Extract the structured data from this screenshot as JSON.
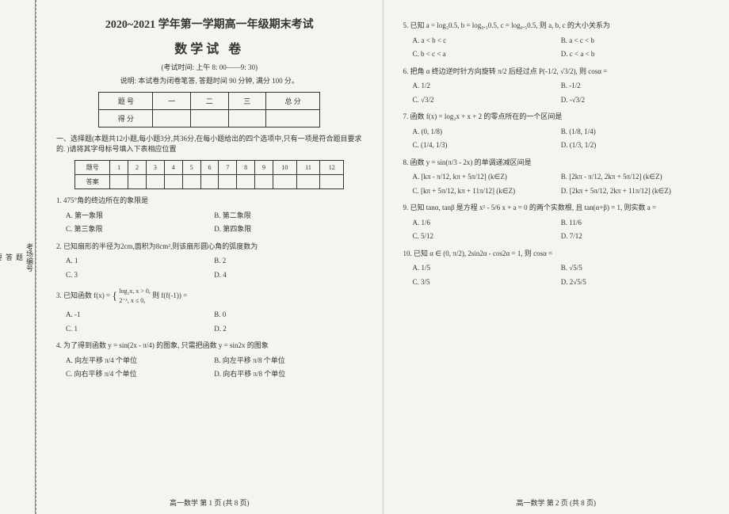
{
  "binding": {
    "labels": [
      "考场编号",
      "题",
      "答",
      "要",
      "不",
      "内",
      "线",
      "封",
      "密",
      "班 级",
      "姓 名",
      "学 校"
    ]
  },
  "header": {
    "title": "2020~2021 学年第一学期高一年级期末考试",
    "subject": "数学试 卷",
    "time": "(考试时间: 上午 8: 00——9: 30)",
    "note": "说明: 本试卷为闭卷笔答, 答题时间 90 分钟, 满分 100 分。"
  },
  "scoreTable": {
    "h1": "题 号",
    "c1": "一",
    "c2": "二",
    "c3": "三",
    "c4": "总 分",
    "h2": "得 分"
  },
  "section1": "一、选择题(本题共12小题,每小题3分,共36分,在每小题给出的四个选项中,只有一项是符合题目要求的. )请将其字母标号填入下表相应位置",
  "ansTable": {
    "r1": "题号",
    "cols": [
      "1",
      "2",
      "3",
      "4",
      "5",
      "6",
      "7",
      "8",
      "9",
      "10",
      "11",
      "12"
    ],
    "r2": "答案"
  },
  "q1": {
    "stem": "1. 475°角的终边所在的象限是",
    "a": "A. 第一象限",
    "b": "B. 第二象限",
    "c": "C. 第三象限",
    "d": "D. 第四象限"
  },
  "q2": {
    "stem": "2. 已知扇形的半径为2cm,面积为8cm²,则该扇形圆心角的弧度数为",
    "a": "A. 1",
    "b": "B. 2",
    "c": "C. 3",
    "d": "D. 4"
  },
  "q3": {
    "stem_a": "3. 已知函数 f(x) = ",
    "stem_b": "log₂x, x > 0,",
    "stem_c": "2⁻ˣ, x ≤ 0,",
    "stem_d": "则 f(f(-1)) =",
    "a": "A. -1",
    "b": "B. 0",
    "c": "C. 1",
    "d": "D. 2"
  },
  "q4": {
    "stem": "4. 为了得到函数 y = sin(2x - π/4) 的图象, 只需把函数 y = sin2x 的图象",
    "a": "A. 向左平移 π/4 个单位",
    "b": "B. 向左平移 π/8 个单位",
    "c": "C. 向右平移 π/4 个单位",
    "d": "D. 向右平移 π/8 个单位"
  },
  "q5": {
    "stem": "5. 已知 a = log₃0.5, b = log₀.₃0.5, c = log₀.₅0.5, 则 a, b, c 的大小关系为",
    "a": "A. a < b < c",
    "b": "B. a < c < b",
    "c": "C. b < c < a",
    "d": "D. c < a < b"
  },
  "q6": {
    "stem": "6. 把角 α 终边逆时针方向旋转 π/2 后经过点 P(-1/2, √3/2), 则 cosα =",
    "a": "A. 1/2",
    "b": "B. -1/2",
    "c": "C. √3/2",
    "d": "D. -√3/2"
  },
  "q7": {
    "stem": "7. 函数 f(x) = log₂x + x + 2 的零点所在的一个区间是",
    "a": "A. (0, 1/8)",
    "b": "B. (1/8, 1/4)",
    "c": "C. (1/4, 1/3)",
    "d": "D. (1/3, 1/2)"
  },
  "q8": {
    "stem": "8. 函数 y = sin(π/3 - 2x) 的单调递减区间是",
    "a": "A. [kπ - π/12, kπ + 5π/12] (k∈Z)",
    "b": "B. [2kπ - π/12, 2kπ + 5π/12] (k∈Z)",
    "c": "C. [kπ + 5π/12, kπ + 11π/12] (k∈Z)",
    "d": "D. [2kπ + 5π/12, 2kπ + 11π/12] (k∈Z)"
  },
  "q9": {
    "stem": "9. 已知 tanα, tanβ 是方程 x² - 5/6 x + a = 0 的两个实数根, 且 tan(α+β) = 1, 则实数 a =",
    "a": "A. 1/6",
    "b": "B. 11/6",
    "c": "C. 5/12",
    "d": "D. 7/12"
  },
  "q10": {
    "stem": "10. 已知 α ∈ (0, π/2), 2sin2α - cos2α = 1, 则 cosα =",
    "a": "A. 1/5",
    "b": "B. √5/5",
    "c": "C. 3/5",
    "d": "D. 2√5/5"
  },
  "footer": {
    "left": "高一数学  第 1 页 (共 8 页)",
    "right": "高一数学  第 2 页 (共 8 页)"
  }
}
